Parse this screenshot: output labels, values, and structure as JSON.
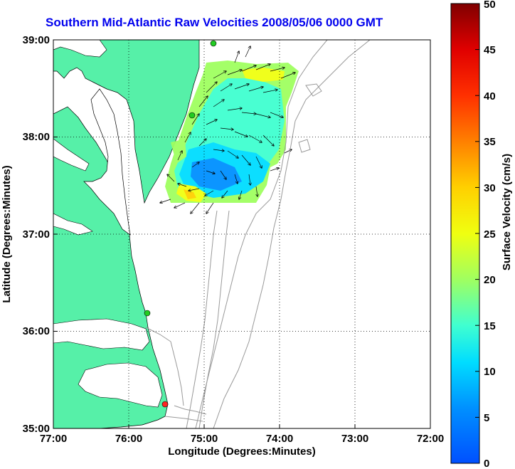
{
  "title": "Southern Mid-Atlantic Raw Velocities 2008/05/06 0000 GMT",
  "xaxis": {
    "label": "Longitude (Degrees:Minutes)",
    "ticks": [
      "77:00",
      "76:00",
      "75:00",
      "74:00",
      "73:00",
      "72:00"
    ]
  },
  "yaxis": {
    "label": "Latitude (Degrees:Minutes)",
    "ticks": [
      "39:00",
      "38:00",
      "37:00",
      "36:00",
      "35:00"
    ]
  },
  "colorbar": {
    "label": "Surface Velocity (cm/s)",
    "ticks": [
      "50",
      "45",
      "40",
      "35",
      "30",
      "25",
      "20",
      "15",
      "10",
      "5",
      "0"
    ],
    "min": 0,
    "max": 50,
    "colormap": "jet"
  },
  "colors": {
    "land": "#56f0a8",
    "title": "#0000ee",
    "station_green": "#22cc22",
    "station_red": "#ff2222",
    "bathymetry": "#999999"
  },
  "grid": "dotted"
}
